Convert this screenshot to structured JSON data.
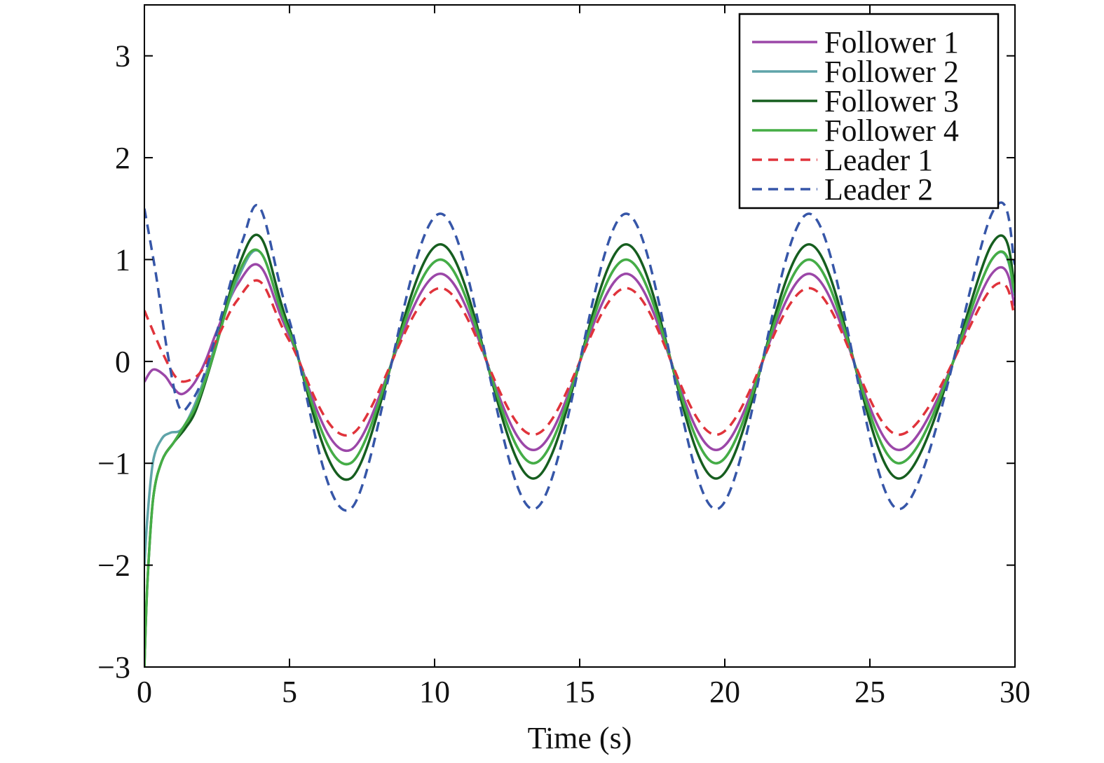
{
  "chart_data": {
    "type": "line",
    "xlabel": "Time (s)",
    "ylabel": "",
    "xlim": [
      0,
      30
    ],
    "ylim": [
      -3,
      3.5
    ],
    "xticks": [
      0,
      5,
      10,
      15,
      20,
      25,
      30
    ],
    "yticks": [
      -3,
      -2,
      -1,
      0,
      1,
      2,
      3
    ],
    "grid": false,
    "legend_position": "top-right",
    "series": [
      {
        "name": "Follower 1",
        "color": "#9b47a8",
        "dash": "solid",
        "x": [
          0,
          0.3,
          0.7,
          1.0,
          1.3,
          1.7,
          2.1,
          2.5,
          3.2,
          4.0,
          5.0,
          7.1,
          10.2,
          13.4,
          16.6,
          19.7,
          22.9,
          26.0,
          29.2,
          30
        ],
        "y": [
          -0.2,
          -0.08,
          -0.14,
          -0.26,
          -0.32,
          -0.22,
          0.0,
          0.3,
          0.75,
          0.93,
          0.25,
          -0.87,
          0.86,
          -0.87,
          0.86,
          -0.87,
          0.86,
          -0.87,
          0.86,
          0.55
        ]
      },
      {
        "name": "Follower 2",
        "color": "#5fa4a9",
        "dash": "solid",
        "x": [
          0,
          0.1,
          0.3,
          0.6,
          0.9,
          1.3,
          1.8,
          2.4,
          3.2,
          4.0,
          5.0,
          7.1,
          10.2,
          13.4,
          16.6,
          19.7,
          22.9,
          26.0,
          29.2,
          30
        ],
        "y": [
          -2.0,
          -1.55,
          -0.98,
          -0.76,
          -0.7,
          -0.66,
          -0.38,
          0.12,
          0.8,
          1.07,
          0.28,
          -1.0,
          1.0,
          -1.0,
          1.0,
          -1.0,
          1.0,
          -1.0,
          1.0,
          0.65
        ]
      },
      {
        "name": "Follower 3",
        "color": "#165e1f",
        "dash": "solid",
        "x": [
          0,
          0.1,
          0.3,
          0.6,
          1.0,
          1.4,
          1.8,
          2.4,
          3.2,
          4.0,
          5.0,
          7.1,
          10.2,
          13.4,
          16.6,
          19.7,
          22.9,
          26.0,
          29.2,
          30
        ],
        "y": [
          -3.0,
          -2.2,
          -1.35,
          -0.98,
          -0.8,
          -0.66,
          -0.46,
          0.08,
          0.9,
          1.22,
          0.32,
          -1.15,
          1.15,
          -1.15,
          1.15,
          -1.15,
          1.15,
          -1.15,
          1.15,
          0.75
        ]
      },
      {
        "name": "Follower 4",
        "color": "#45ad45",
        "dash": "solid",
        "x": [
          0,
          0.1,
          0.3,
          0.6,
          1.0,
          1.4,
          1.8,
          2.4,
          3.2,
          4.0,
          5.0,
          7.1,
          10.2,
          13.4,
          16.6,
          19.7,
          22.9,
          26.0,
          29.2,
          30
        ],
        "y": [
          -3.0,
          -2.2,
          -1.35,
          -0.98,
          -0.8,
          -0.62,
          -0.42,
          0.08,
          0.84,
          1.07,
          0.28,
          -1.0,
          1.0,
          -1.0,
          1.0,
          -1.0,
          1.0,
          -1.0,
          1.0,
          0.68
        ]
      },
      {
        "name": "Leader 1",
        "color": "#e0333b",
        "dash": "dashed",
        "x": [
          0,
          0.6,
          1.1,
          1.5,
          2.0,
          2.6,
          3.2,
          4.0,
          5.0,
          7.1,
          10.2,
          13.4,
          16.6,
          19.7,
          22.9,
          26.0,
          29.2,
          30
        ],
        "y": [
          0.5,
          0.1,
          -0.16,
          -0.19,
          -0.08,
          0.28,
          0.6,
          0.78,
          0.2,
          -0.72,
          0.72,
          -0.72,
          0.72,
          -0.72,
          0.72,
          -0.72,
          0.72,
          0.45
        ]
      },
      {
        "name": "Leader 2",
        "color": "#3656a8",
        "dash": "dashed",
        "x": [
          0,
          0.4,
          0.8,
          1.2,
          1.6,
          2.1,
          2.8,
          3.4,
          4.0,
          5.0,
          7.1,
          10.2,
          13.4,
          16.6,
          19.7,
          22.9,
          26.0,
          29.2,
          30
        ],
        "y": [
          1.5,
          0.85,
          0.08,
          -0.45,
          -0.4,
          -0.1,
          0.6,
          1.2,
          1.5,
          0.4,
          -1.45,
          1.45,
          -1.45,
          1.45,
          -1.45,
          1.45,
          -1.45,
          1.45,
          0.95
        ]
      }
    ]
  }
}
